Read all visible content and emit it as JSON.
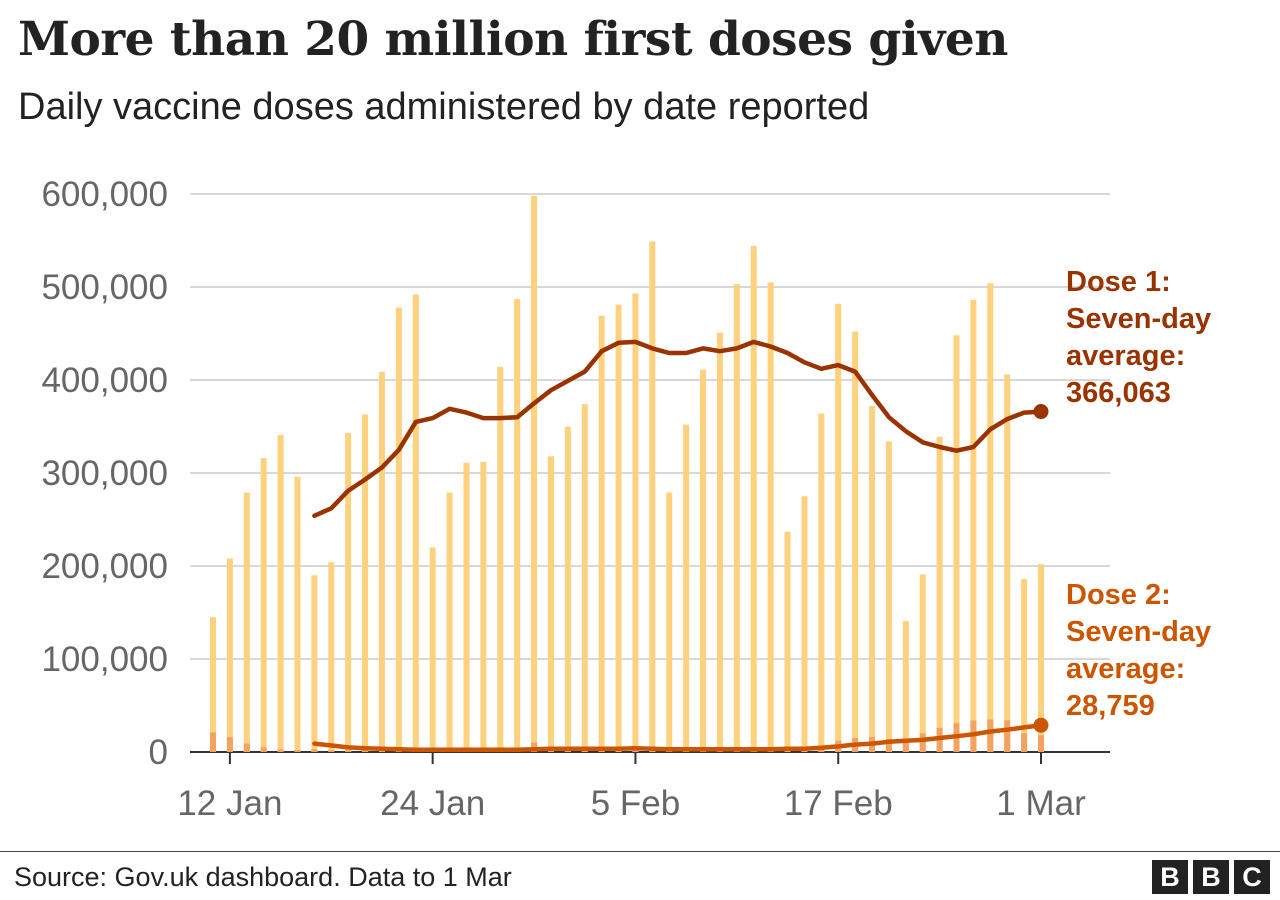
{
  "header": {
    "title": "More than 20 million first doses given",
    "subtitle": "Daily vaccine doses administered by date reported"
  },
  "annotations": {
    "dose1": [
      "Dose 1:",
      "Seven-day",
      "average:",
      "366,063"
    ],
    "dose2": [
      "Dose 2:",
      "Seven-day",
      "average:",
      "28,759"
    ]
  },
  "footer": {
    "source": "Source: Gov.uk dashboard. Data to 1 Mar",
    "logo": [
      "B",
      "B",
      "C"
    ]
  },
  "colors": {
    "dose1_bar": "#fdd17e",
    "dose2_bar": "#f4a261",
    "dose1_line": "#993300",
    "dose2_line": "#cc5500",
    "grid": "#cccccc",
    "axis_text": "#666666"
  },
  "chart_data": {
    "type": "bar",
    "title": "More than 20 million first doses given",
    "subtitle": "Daily vaccine doses administered by date reported",
    "ylim": [
      0,
      600000
    ],
    "yticks": [
      0,
      100000,
      200000,
      300000,
      400000,
      500000,
      600000
    ],
    "ytick_labels": [
      "0",
      "100,000",
      "200,000",
      "300,000",
      "400,000",
      "500,000",
      "600,000"
    ],
    "x_start": "2021-01-11",
    "x_end": "2021-03-01",
    "xtick_dates": [
      "2021-01-12",
      "2021-01-24",
      "2021-02-05",
      "2021-02-17",
      "2021-03-01"
    ],
    "xtick_labels": [
      "12 Jan",
      "24 Jan",
      "5 Feb",
      "17 Feb",
      "1 Mar"
    ],
    "grid": true,
    "series": [
      {
        "name": "Dose 1",
        "type": "bar",
        "values": [
          145000,
          208000,
          279000,
          316000,
          341000,
          296000,
          190000,
          204000,
          343000,
          363000,
          409000,
          478000,
          492000,
          220000,
          279000,
          311000,
          312000,
          414000,
          487000,
          598000,
          318000,
          350000,
          374000,
          469000,
          481000,
          493000,
          549000,
          279000,
          352000,
          411000,
          451000,
          503000,
          544000,
          505000,
          237000,
          275000,
          364000,
          482000,
          452000,
          372000,
          334000,
          141000,
          191000,
          339000,
          448000,
          486000,
          504000,
          406000,
          186000,
          202000
        ]
      },
      {
        "name": "Dose 2",
        "type": "bar",
        "values": [
          21000,
          16000,
          9000,
          5000,
          3000,
          2000,
          3000,
          2000,
          2000,
          2000,
          2000,
          2000,
          2000,
          2000,
          2000,
          2000,
          2000,
          3000,
          3000,
          10000,
          3000,
          3000,
          3000,
          3000,
          3000,
          3000,
          3000,
          3000,
          3000,
          3000,
          3000,
          3000,
          3000,
          3000,
          3000,
          4000,
          6000,
          12000,
          15000,
          16000,
          14000,
          11000,
          20000,
          26000,
          31000,
          34000,
          35000,
          34000,
          20000,
          18000
        ]
      },
      {
        "name": "Dose 1: Seven-day average",
        "type": "line",
        "start_index": 6,
        "values": [
          254000,
          262000,
          281000,
          293000,
          306000,
          325000,
          355000,
          359000,
          369000,
          365000,
          359000,
          359000,
          360000,
          375000,
          389000,
          399000,
          409000,
          431000,
          440000,
          441000,
          434000,
          429000,
          429000,
          434000,
          431000,
          434000,
          441000,
          436000,
          429000,
          419000,
          412000,
          416000,
          409000,
          384000,
          360000,
          345000,
          333000,
          328000,
          324000,
          328000,
          347000,
          358000,
          365000,
          366063
        ]
      },
      {
        "name": "Dose 2: Seven-day average",
        "type": "line",
        "start_index": 6,
        "values": [
          9000,
          7000,
          5000,
          4000,
          3500,
          3000,
          2500,
          2500,
          2500,
          2500,
          2500,
          2500,
          2500,
          3000,
          3500,
          3500,
          3500,
          3500,
          3500,
          4000,
          3500,
          3000,
          3000,
          3000,
          3000,
          3000,
          3000,
          3000,
          3500,
          3500,
          4500,
          6000,
          8000,
          9000,
          11000,
          12000,
          13000,
          15000,
          17000,
          19000,
          22000,
          24000,
          26500,
          28759
        ]
      }
    ]
  }
}
